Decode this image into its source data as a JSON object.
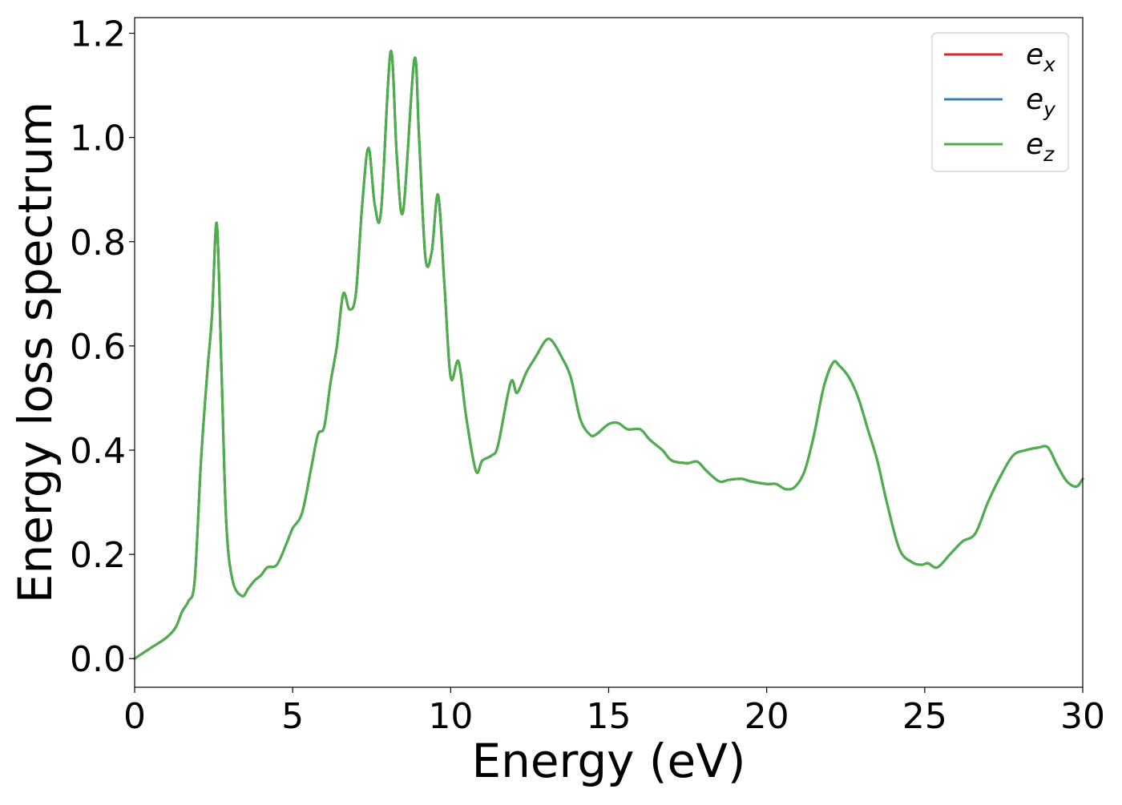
{
  "chart_data": {
    "type": "line",
    "title": "",
    "xlabel": "Energy (eV)",
    "ylabel": "Energy loss spectrum",
    "xlim": [
      0,
      30
    ],
    "ylim": [
      -0.055,
      1.23
    ],
    "xticks": [
      0,
      5,
      10,
      15,
      20,
      25,
      30
    ],
    "xtick_labels": [
      "0",
      "5",
      "10",
      "15",
      "20",
      "25",
      "30"
    ],
    "yticks": [
      0.0,
      0.2,
      0.4,
      0.6,
      0.8,
      1.0,
      1.2
    ],
    "ytick_labels": [
      "0.0",
      "0.2",
      "0.4",
      "0.6",
      "0.8",
      "1.0",
      "1.2"
    ],
    "grid": false,
    "legend_position": "top-right",
    "x": [
      0,
      0.5,
      1.0,
      1.3,
      1.5,
      1.7,
      1.9,
      2.1,
      2.3,
      2.45,
      2.6,
      2.75,
      2.9,
      3.1,
      3.4,
      3.6,
      3.8,
      4.0,
      4.2,
      4.5,
      4.8,
      5.0,
      5.3,
      5.6,
      5.8,
      6.0,
      6.2,
      6.4,
      6.6,
      6.8,
      7.0,
      7.2,
      7.4,
      7.6,
      7.8,
      8.1,
      8.3,
      8.5,
      8.85,
      9.0,
      9.2,
      9.4,
      9.6,
      9.8,
      10.0,
      10.25,
      10.5,
      10.8,
      11.0,
      11.3,
      11.5,
      11.9,
      12.1,
      12.4,
      12.7,
      13.0,
      13.2,
      13.5,
      13.8,
      14.1,
      14.4,
      14.6,
      15.0,
      15.3,
      15.6,
      16.0,
      16.3,
      16.7,
      17.0,
      17.5,
      17.8,
      18.1,
      18.5,
      18.8,
      19.2,
      19.5,
      20.0,
      20.3,
      20.6,
      20.9,
      21.2,
      21.5,
      21.8,
      22.1,
      22.3,
      22.6,
      22.9,
      23.2,
      23.5,
      23.8,
      24.2,
      24.6,
      24.9,
      25.1,
      25.4,
      25.8,
      26.2,
      26.6,
      27.0,
      27.4,
      27.8,
      28.2,
      28.6,
      28.9,
      29.2,
      29.5,
      29.8,
      30.0
    ],
    "series": [
      {
        "name": "e_x",
        "color": "#d62728",
        "values": [
          0.0,
          0.02,
          0.04,
          0.06,
          0.09,
          0.11,
          0.15,
          0.38,
          0.55,
          0.66,
          0.835,
          0.55,
          0.26,
          0.15,
          0.12,
          0.135,
          0.15,
          0.16,
          0.175,
          0.18,
          0.22,
          0.25,
          0.28,
          0.37,
          0.43,
          0.445,
          0.53,
          0.6,
          0.7,
          0.67,
          0.7,
          0.87,
          0.98,
          0.87,
          0.86,
          1.165,
          0.96,
          0.86,
          1.15,
          1.0,
          0.77,
          0.78,
          0.89,
          0.72,
          0.54,
          0.57,
          0.46,
          0.36,
          0.38,
          0.39,
          0.41,
          0.53,
          0.51,
          0.55,
          0.58,
          0.61,
          0.61,
          0.58,
          0.54,
          0.46,
          0.43,
          0.43,
          0.45,
          0.452,
          0.44,
          0.44,
          0.42,
          0.4,
          0.38,
          0.375,
          0.378,
          0.36,
          0.34,
          0.343,
          0.345,
          0.34,
          0.335,
          0.335,
          0.325,
          0.33,
          0.36,
          0.43,
          0.52,
          0.568,
          0.562,
          0.54,
          0.5,
          0.44,
          0.38,
          0.3,
          0.21,
          0.185,
          0.18,
          0.183,
          0.175,
          0.2,
          0.225,
          0.24,
          0.3,
          0.35,
          0.39,
          0.4,
          0.405,
          0.405,
          0.37,
          0.34,
          0.33,
          0.345
        ]
      },
      {
        "name": "e_y",
        "color": "#377eb8",
        "values": [
          0.0,
          0.02,
          0.04,
          0.06,
          0.09,
          0.11,
          0.15,
          0.38,
          0.55,
          0.66,
          0.835,
          0.55,
          0.26,
          0.15,
          0.12,
          0.135,
          0.15,
          0.16,
          0.175,
          0.18,
          0.22,
          0.25,
          0.28,
          0.37,
          0.43,
          0.445,
          0.53,
          0.6,
          0.7,
          0.67,
          0.7,
          0.87,
          0.98,
          0.87,
          0.86,
          1.165,
          0.96,
          0.86,
          1.15,
          1.0,
          0.77,
          0.78,
          0.89,
          0.72,
          0.54,
          0.57,
          0.46,
          0.36,
          0.38,
          0.39,
          0.41,
          0.53,
          0.51,
          0.55,
          0.58,
          0.61,
          0.61,
          0.58,
          0.54,
          0.46,
          0.43,
          0.43,
          0.45,
          0.452,
          0.44,
          0.44,
          0.42,
          0.4,
          0.38,
          0.375,
          0.378,
          0.36,
          0.34,
          0.343,
          0.345,
          0.34,
          0.335,
          0.335,
          0.325,
          0.33,
          0.36,
          0.43,
          0.52,
          0.568,
          0.562,
          0.54,
          0.5,
          0.44,
          0.38,
          0.3,
          0.21,
          0.185,
          0.18,
          0.183,
          0.175,
          0.2,
          0.225,
          0.24,
          0.3,
          0.35,
          0.39,
          0.4,
          0.405,
          0.405,
          0.37,
          0.34,
          0.33,
          0.345
        ]
      },
      {
        "name": "e_z",
        "color": "#4daf4a",
        "values": [
          0.0,
          0.02,
          0.04,
          0.06,
          0.09,
          0.11,
          0.15,
          0.38,
          0.55,
          0.66,
          0.835,
          0.55,
          0.26,
          0.15,
          0.12,
          0.135,
          0.15,
          0.16,
          0.175,
          0.18,
          0.22,
          0.25,
          0.28,
          0.37,
          0.43,
          0.445,
          0.53,
          0.6,
          0.7,
          0.67,
          0.7,
          0.87,
          0.98,
          0.87,
          0.86,
          1.165,
          0.96,
          0.86,
          1.15,
          1.0,
          0.77,
          0.78,
          0.89,
          0.72,
          0.54,
          0.57,
          0.46,
          0.36,
          0.38,
          0.39,
          0.41,
          0.53,
          0.51,
          0.55,
          0.58,
          0.61,
          0.61,
          0.58,
          0.54,
          0.46,
          0.43,
          0.43,
          0.45,
          0.452,
          0.44,
          0.44,
          0.42,
          0.4,
          0.38,
          0.375,
          0.378,
          0.36,
          0.34,
          0.343,
          0.345,
          0.34,
          0.335,
          0.335,
          0.325,
          0.33,
          0.36,
          0.43,
          0.52,
          0.568,
          0.562,
          0.54,
          0.5,
          0.44,
          0.38,
          0.3,
          0.21,
          0.185,
          0.18,
          0.183,
          0.175,
          0.2,
          0.225,
          0.24,
          0.3,
          0.35,
          0.39,
          0.4,
          0.405,
          0.405,
          0.37,
          0.34,
          0.33,
          0.345
        ]
      }
    ],
    "legend": [
      {
        "base": "e",
        "sub": "x",
        "color": "#d62728"
      },
      {
        "base": "e",
        "sub": "y",
        "color": "#377eb8"
      },
      {
        "base": "e",
        "sub": "z",
        "color": "#4daf4a"
      }
    ]
  }
}
